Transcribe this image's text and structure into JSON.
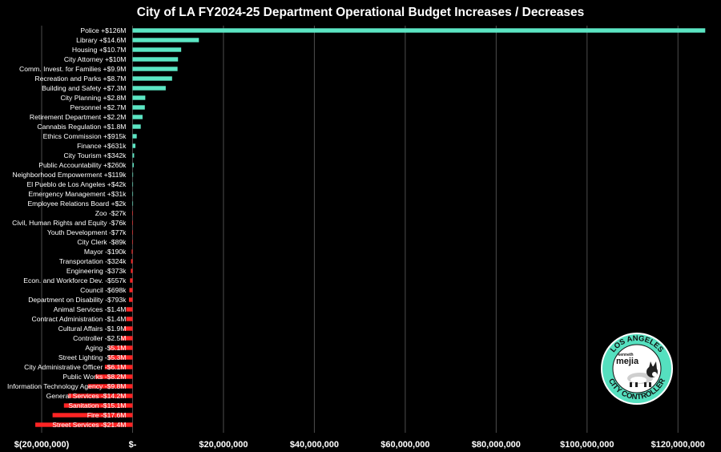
{
  "colors": {
    "background": "#000000",
    "positive": "#5ce6c4",
    "negative": "#ff2424",
    "grid": "#4d4d4d",
    "text": "#ffffff",
    "badge_fill": "#55e0bf",
    "badge_text": "#111111"
  },
  "badge": {
    "top_text": "LOS ANGELES",
    "bottom_text": "CITY CONTROLLER",
    "small_text": "kenneth",
    "name_text": "mejia"
  },
  "chart_data": {
    "type": "bar",
    "orientation": "horizontal",
    "title": "City of LA FY2024-25 Department Operational Budget Increases / Decreases",
    "xlabel": "",
    "ylabel": "",
    "xlim": [
      -20000000,
      127000000
    ],
    "grid": true,
    "legend": "none",
    "x_ticks": [
      {
        "value": -20000000,
        "label": "$(20,000,000)"
      },
      {
        "value": 0,
        "label": "$-"
      },
      {
        "value": 20000000,
        "label": "$20,000,000"
      },
      {
        "value": 40000000,
        "label": "$40,000,000"
      },
      {
        "value": 60000000,
        "label": "$60,000,000"
      },
      {
        "value": 80000000,
        "label": "$80,000,000"
      },
      {
        "value": 100000000,
        "label": "$100,000,000"
      },
      {
        "value": 120000000,
        "label": "$120,000,000"
      }
    ],
    "categories": [
      "Police +$126M",
      "Library +$14.6M",
      "Housing +$10.7M",
      "City Attorney +$10M",
      "Comm. Invest. for Families +$9.9M",
      "Recreation and Parks +$8.7M",
      "Building and Safety +$7.3M",
      "City Planning +$2.8M",
      "Personnel +$2.7M",
      "Retirement Department +$2.2M",
      "Cannabis Regulation +$1.8M",
      "Ethics Commission +$915k",
      "Finance +$631k",
      "City Tourism +$342k",
      "Public Accountability +$260k",
      "Neighborhood Empowerment +$119k",
      "El Pueblo de Los Angeles +$42k",
      "Emergency Management +$31k",
      "Employee Relations Board +$2k",
      "Zoo -$27k",
      "Civil, Human Rights and Equity -$76k",
      "Youth Development -$77k",
      "City Clerk -$89k",
      "Mayor -$190k",
      "Transportation -$324k",
      "Engineering -$373k",
      "Econ. and Workforce Dev. -$557k",
      "Council -$698k",
      "Department on Disability -$793k",
      "Animal Services -$1.4M",
      "Contract Administration -$1.4M",
      "Cultural Affairs -$1.9M",
      "Controller -$2.5M",
      "Aging -$5.1M",
      "Street Lighting -$5.3M",
      "City Administrative Officer -$6.1M",
      "Public Works -$8.2M",
      "Information Technology Agency -$9.8M",
      "General Services -$14.2M",
      "Sanitation -$15.1M",
      "Fire -$17.6M",
      "Street Services -$21.4M"
    ],
    "values": [
      126000000,
      14600000,
      10700000,
      10000000,
      9900000,
      8700000,
      7300000,
      2800000,
      2700000,
      2200000,
      1800000,
      915000,
      631000,
      342000,
      260000,
      119000,
      42000,
      31000,
      2000,
      -27000,
      -76000,
      -77000,
      -89000,
      -190000,
      -324000,
      -373000,
      -557000,
      -698000,
      -793000,
      -1400000,
      -1400000,
      -1900000,
      -2500000,
      -5100000,
      -5300000,
      -6100000,
      -8200000,
      -9800000,
      -14200000,
      -15100000,
      -17600000,
      -21400000
    ]
  }
}
